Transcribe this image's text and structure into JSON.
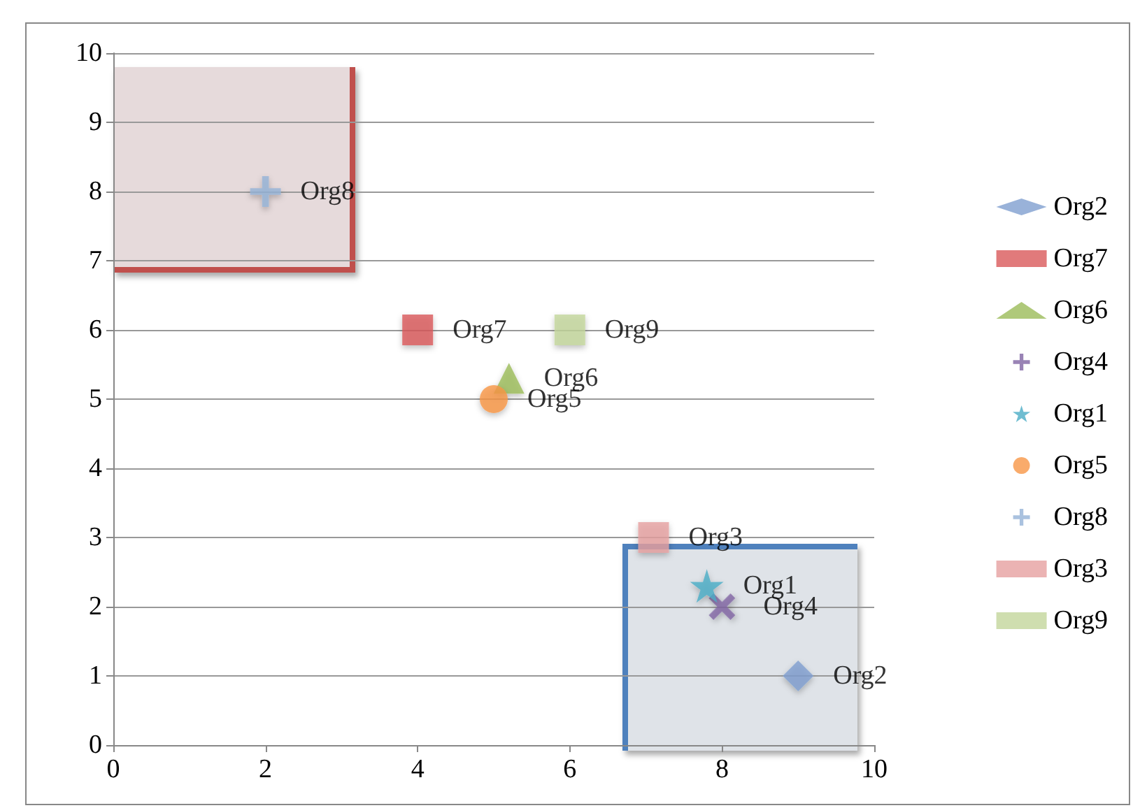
{
  "chart_data": {
    "type": "scatter",
    "series": [
      {
        "name": "Org2",
        "color": "#7f9fd0",
        "marker": "diamond",
        "x": [
          9.0
        ],
        "values": [
          1.0
        ]
      },
      {
        "name": "Org7",
        "color": "#d9595a",
        "marker": "square",
        "x": [
          4.0
        ],
        "values": [
          6.0
        ]
      },
      {
        "name": "Org6",
        "color": "#9bbb59",
        "marker": "triangle",
        "x": [
          5.2
        ],
        "values": [
          5.3
        ]
      },
      {
        "name": "Org4",
        "color": "#8064a2",
        "marker": "cross",
        "x": [
          8.0
        ],
        "values": [
          2.0
        ]
      },
      {
        "name": "Org1",
        "color": "#4bacc6",
        "marker": "star",
        "x": [
          7.8
        ],
        "values": [
          2.3
        ]
      },
      {
        "name": "Org5",
        "color": "#f79646",
        "marker": "circle",
        "x": [
          5.0
        ],
        "values": [
          5.0
        ]
      },
      {
        "name": "Org8",
        "color": "#95b3d7",
        "marker": "cross",
        "x": [
          2.0
        ],
        "values": [
          8.0
        ]
      },
      {
        "name": "Org3",
        "color": "#e6a0a0",
        "marker": "square",
        "x": [
          7.1
        ],
        "values": [
          3.0
        ]
      },
      {
        "name": "Org9",
        "color": "#c3d69b",
        "marker": "square",
        "x": [
          6.0
        ],
        "values": [
          6.0
        ]
      }
    ],
    "xlim": [
      0,
      10
    ],
    "xticks": [
      0,
      2,
      4,
      6,
      8,
      10
    ],
    "ylim": [
      0,
      10
    ],
    "yticks": [
      0,
      1,
      2,
      3,
      4,
      5,
      6,
      7,
      8,
      9,
      10
    ],
    "grid": "y",
    "legend": "right"
  }
}
